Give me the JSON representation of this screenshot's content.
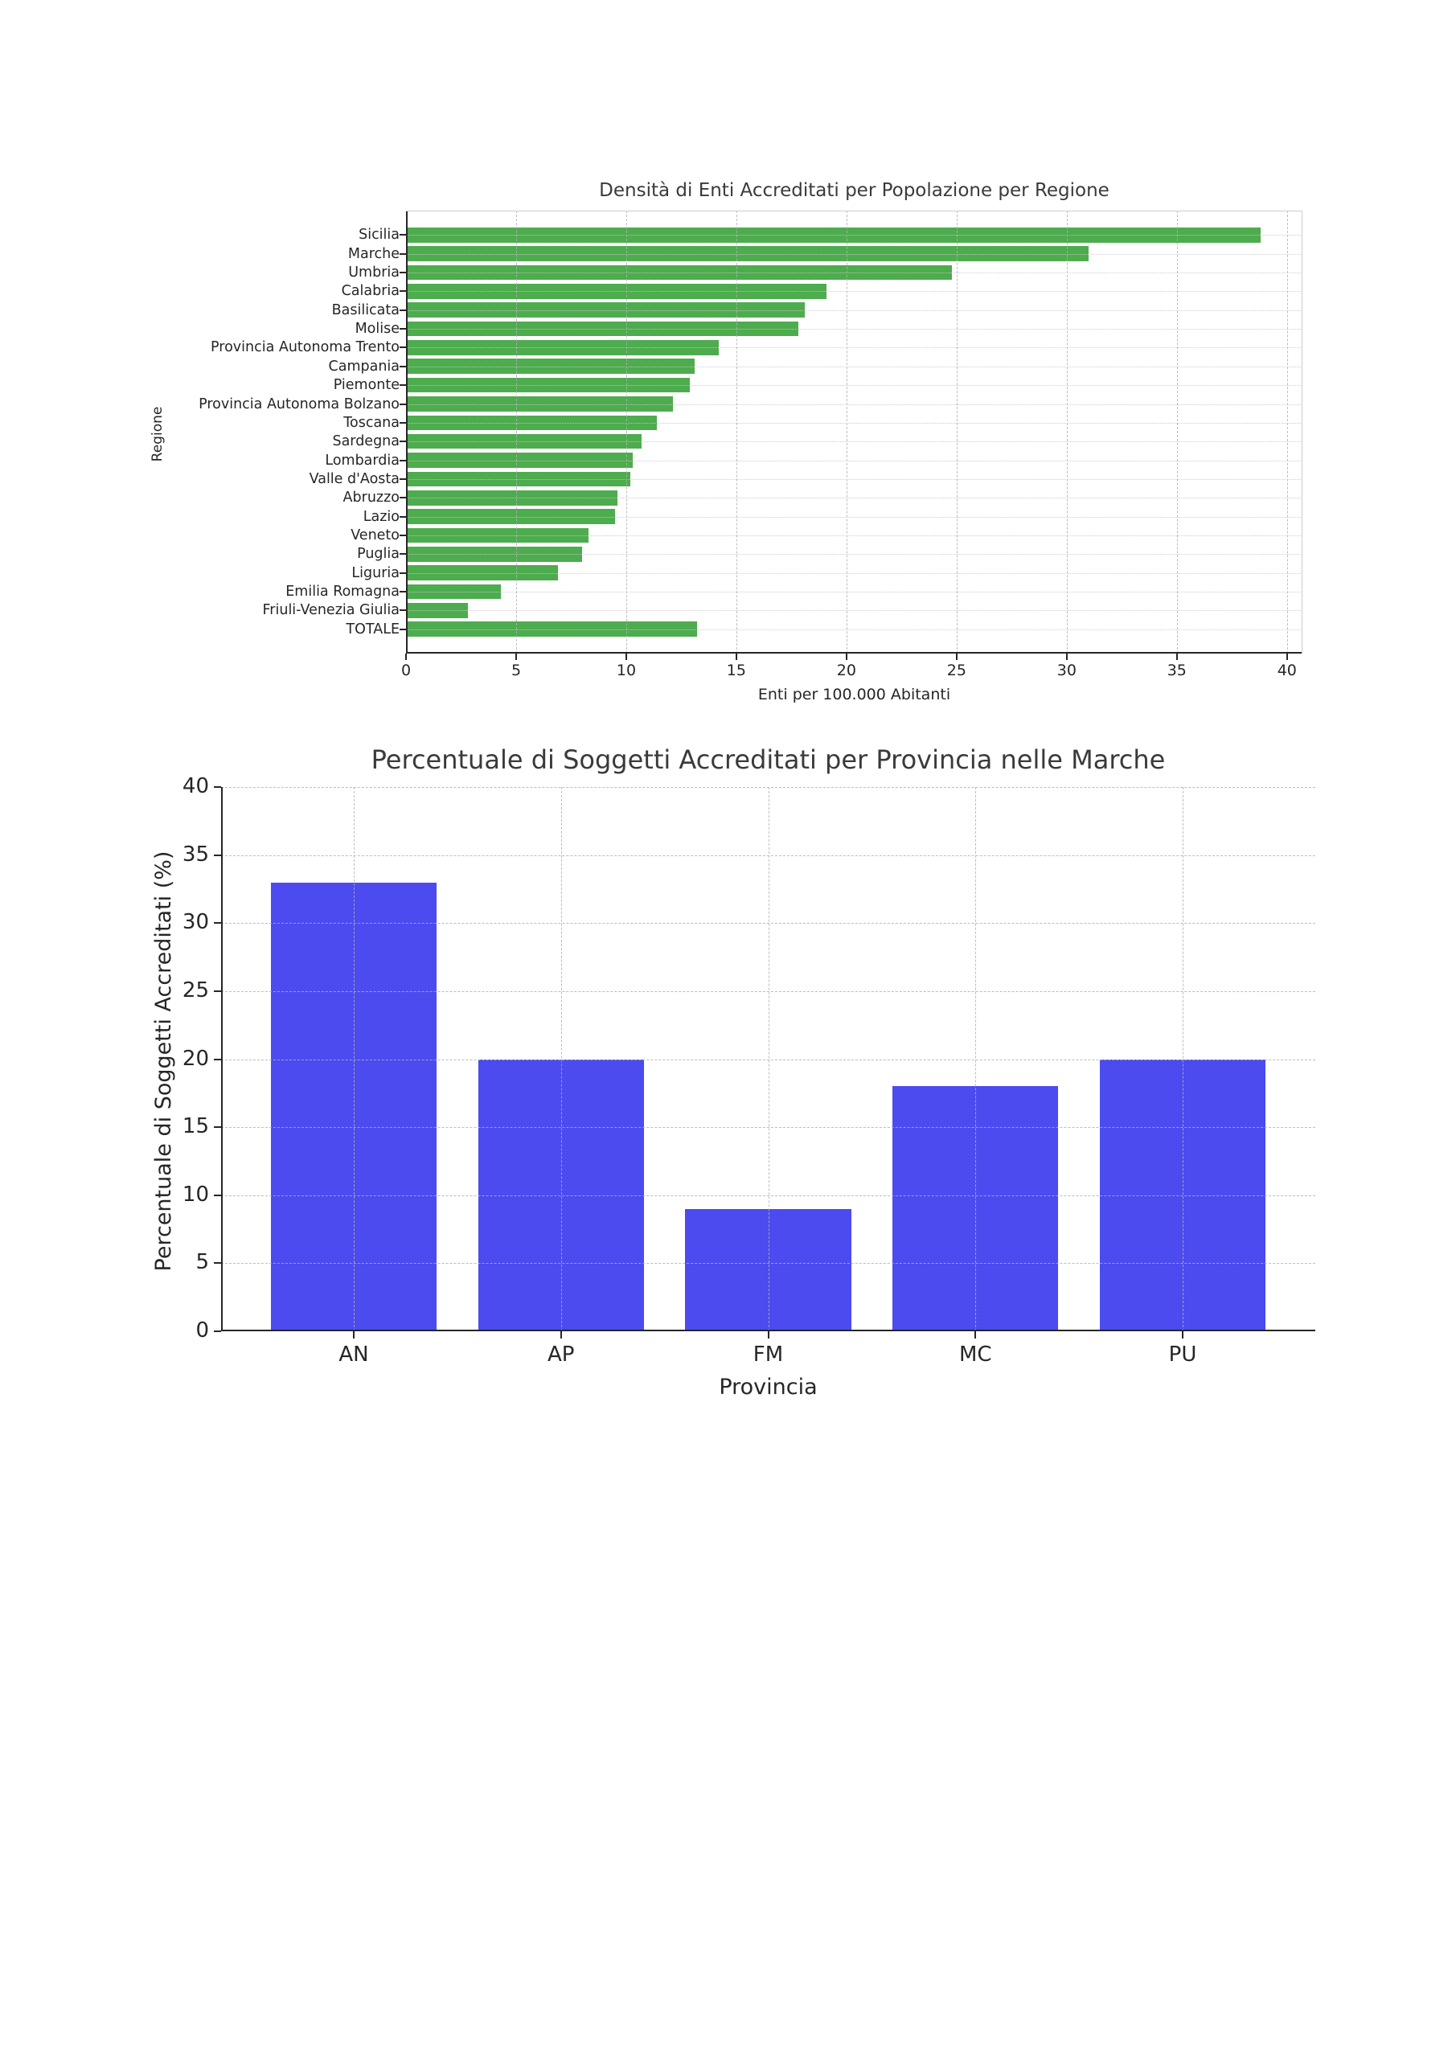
{
  "page": {
    "background": "#ffffff"
  },
  "chart_data": [
    {
      "type": "bar",
      "orientation": "horizontal",
      "title": "Densità di Enti Accreditati per Popolazione per Regione",
      "xlabel": "Enti per 100.000 Abitanti",
      "ylabel": "Regione",
      "categories": [
        "Sicilia",
        "Marche",
        "Umbria",
        "Calabria",
        "Basilicata",
        "Molise",
        "Provincia Autonoma Trento",
        "Campania",
        "Piemonte",
        "Provincia Autonoma Bolzano",
        "Toscana",
        "Sardegna",
        "Lombardia",
        "Valle d'Aosta",
        "Abruzzo",
        "Lazio",
        "Veneto",
        "Puglia",
        "Liguria",
        "Emilia Romagna",
        "Friuli-Venezia Giulia",
        "TOTALE"
      ],
      "values": [
        38.8,
        31.0,
        24.8,
        19.1,
        18.1,
        17.8,
        14.2,
        13.1,
        12.9,
        12.1,
        11.4,
        10.7,
        10.3,
        10.2,
        9.6,
        9.5,
        8.3,
        8.0,
        6.9,
        4.3,
        2.8,
        13.2
      ],
      "xticks": [
        0,
        5,
        10,
        15,
        20,
        25,
        30,
        35,
        40
      ],
      "xlim": [
        0,
        40.7
      ],
      "bar_color": "#4dac4d",
      "grid": true,
      "legend_position": "none"
    },
    {
      "type": "bar",
      "orientation": "vertical",
      "title": "Percentuale di Soggetti Accreditati per Provincia nelle Marche",
      "xlabel": "Provincia",
      "ylabel": "Percentuale di Soggetti Accreditati (%)",
      "categories": [
        "AN",
        "AP",
        "FM",
        "MC",
        "PU"
      ],
      "values": [
        33,
        20,
        9,
        18,
        20
      ],
      "yticks": [
        0,
        5,
        10,
        15,
        20,
        25,
        30,
        35,
        40
      ],
      "ylim": [
        0,
        40
      ],
      "bar_color": "#4b4bef",
      "grid": true,
      "legend_position": "none"
    }
  ]
}
